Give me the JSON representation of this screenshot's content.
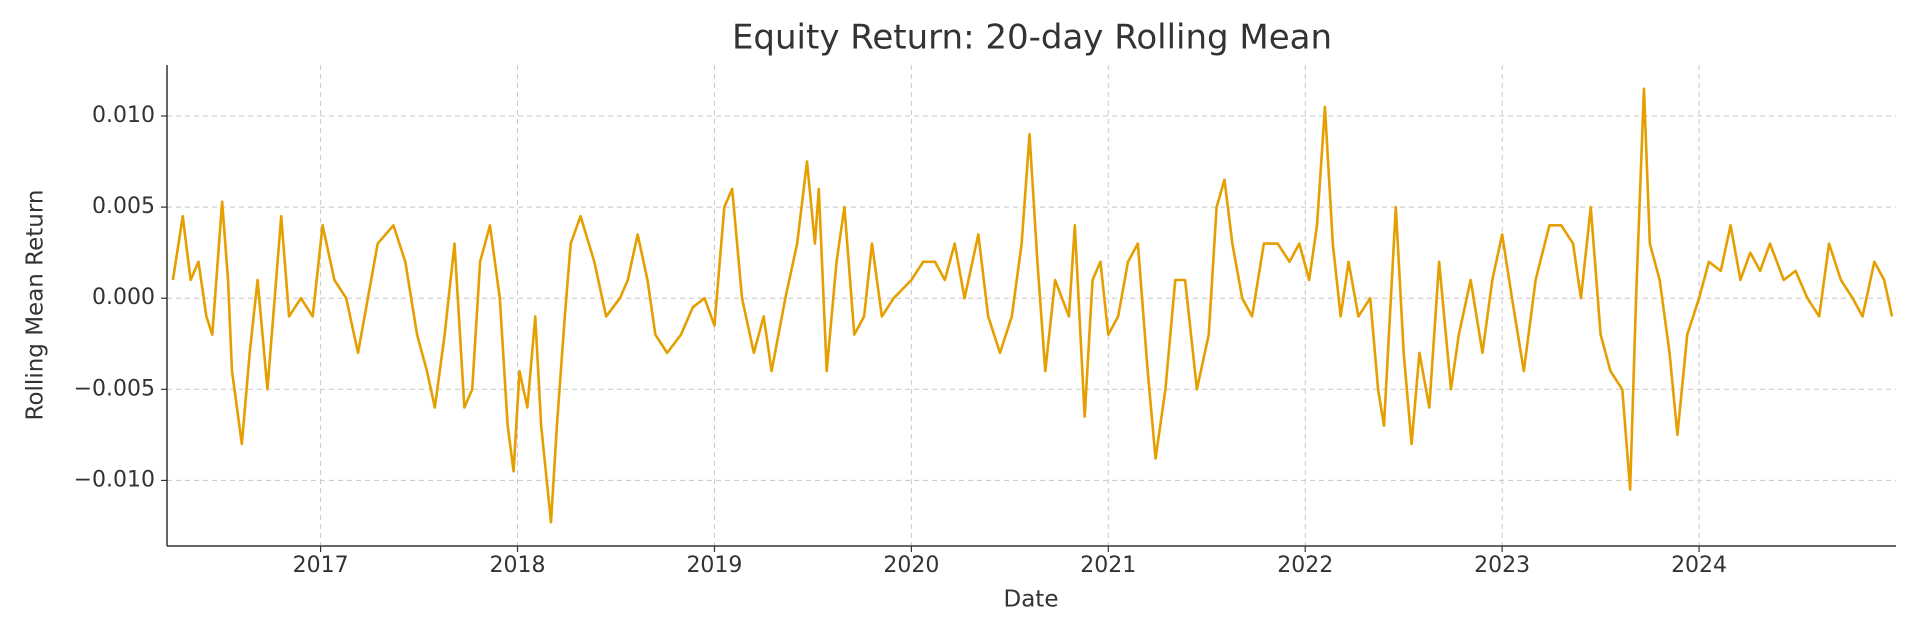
{
  "chart_data": {
    "type": "line",
    "title": "Equity Return: 20-day Rolling Mean",
    "xlabel": "Date",
    "ylabel": "Rolling Mean Return",
    "color": "#E69F00",
    "grid": true,
    "xlim": [
      2016.22,
      2025.0
    ],
    "ylim": [
      -0.0136,
      0.0128
    ],
    "xticks": [
      2017,
      2018,
      2019,
      2020,
      2021,
      2022,
      2023,
      2024
    ],
    "yticks": [
      {
        "value": -0.01,
        "label": "−0.010"
      },
      {
        "value": -0.005,
        "label": "−0.005"
      },
      {
        "value": 0,
        "label": "0.000"
      },
      {
        "value": 0.005,
        "label": "0.005"
      },
      {
        "value": 0.01,
        "label": "0.010"
      }
    ],
    "x": [
      2016.25,
      2016.3,
      2016.34,
      2016.38,
      2016.42,
      2016.45,
      2016.5,
      2016.53,
      2016.55,
      2016.6,
      2016.64,
      2016.68,
      2016.73,
      2016.8,
      2016.84,
      2016.9,
      2016.96,
      2017.01,
      2017.07,
      2017.13,
      2017.19,
      2017.24,
      2017.29,
      2017.37,
      2017.43,
      2017.49,
      2017.54,
      2017.58,
      2017.63,
      2017.68,
      2017.73,
      2017.77,
      2017.81,
      2017.86,
      2017.91,
      2017.95,
      2017.98,
      2018.01,
      2018.05,
      2018.09,
      2018.12,
      2018.17,
      2018.2,
      2018.24,
      2018.27,
      2018.32,
      2018.39,
      2018.45,
      2018.52,
      2018.56,
      2018.61,
      2018.66,
      2018.7,
      2018.76,
      2018.83,
      2018.89,
      2018.95,
      2019.0,
      2019.05,
      2019.09,
      2019.14,
      2019.2,
      2019.25,
      2019.29,
      2019.36,
      2019.42,
      2019.47,
      2019.51,
      2019.53,
      2019.57,
      2019.62,
      2019.66,
      2019.71,
      2019.76,
      2019.8,
      2019.85,
      2019.91,
      2020.0,
      2020.06,
      2020.12,
      2020.17,
      2020.22,
      2020.27,
      2020.34,
      2020.39,
      2020.45,
      2020.51,
      2020.56,
      2020.6,
      2020.64,
      2020.68,
      2020.73,
      2020.8,
      2020.83,
      2020.88,
      2020.92,
      2020.96,
      2021.0,
      2021.05,
      2021.1,
      2021.15,
      2021.2,
      2021.24,
      2021.29,
      2021.34,
      2021.39,
      2021.45,
      2021.51,
      2021.55,
      2021.59,
      2021.63,
      2021.68,
      2021.73,
      2021.79,
      2021.86,
      2021.92,
      2021.97,
      2022.02,
      2022.06,
      2022.1,
      2022.14,
      2022.18,
      2022.22,
      2022.27,
      2022.33,
      2022.37,
      2022.4,
      2022.46,
      2022.5,
      2022.54,
      2022.58,
      2022.63,
      2022.68,
      2022.74,
      2022.78,
      2022.84,
      2022.9,
      2022.95,
      2023.0,
      2023.05,
      2023.11,
      2023.17,
      2023.24,
      2023.3,
      2023.36,
      2023.4,
      2023.45,
      2023.5,
      2023.55,
      2023.61,
      2023.65,
      2023.68,
      2023.72,
      2023.75,
      2023.8,
      2023.85,
      2023.89,
      2023.94,
      2024.0,
      2024.05,
      2024.11,
      2024.16,
      2024.21,
      2024.26,
      2024.31,
      2024.36,
      2024.43,
      2024.49,
      2024.55,
      2024.61,
      2024.66,
      2024.72,
      2024.78,
      2024.83,
      2024.89,
      2024.94,
      2024.98
    ],
    "values": [
      0.001,
      0.0045,
      0.001,
      0.002,
      -0.001,
      -0.002,
      0.0053,
      0.001,
      -0.004,
      -0.008,
      -0.003,
      0.001,
      -0.005,
      0.0045,
      -0.001,
      0.0,
      -0.001,
      0.004,
      0.001,
      0.0,
      -0.003,
      0.0,
      0.003,
      0.004,
      0.002,
      -0.002,
      -0.004,
      -0.006,
      -0.002,
      0.003,
      -0.006,
      -0.005,
      0.002,
      0.004,
      0.0,
      -0.007,
      -0.0095,
      -0.004,
      -0.006,
      -0.001,
      -0.007,
      -0.0123,
      -0.007,
      -0.001,
      0.003,
      0.0045,
      0.002,
      -0.001,
      0.0,
      0.001,
      0.0035,
      0.001,
      -0.002,
      -0.003,
      -0.002,
      -0.0005,
      0.0,
      -0.0015,
      0.005,
      0.006,
      0.0,
      -0.003,
      -0.001,
      -0.004,
      0.0,
      0.003,
      0.0075,
      0.003,
      0.006,
      -0.004,
      0.002,
      0.005,
      -0.002,
      -0.001,
      0.003,
      -0.001,
      0.0,
      0.001,
      0.002,
      0.002,
      0.001,
      0.003,
      0.0,
      0.0035,
      -0.001,
      -0.003,
      -0.001,
      0.003,
      0.009,
      0.002,
      -0.004,
      0.001,
      -0.001,
      0.004,
      -0.0065,
      0.001,
      0.002,
      -0.002,
      -0.001,
      0.002,
      0.003,
      -0.004,
      -0.0088,
      -0.005,
      0.001,
      0.001,
      -0.005,
      -0.002,
      0.005,
      0.0065,
      0.003,
      0.0,
      -0.001,
      0.003,
      0.003,
      0.002,
      0.003,
      0.001,
      0.004,
      0.0105,
      0.003,
      -0.001,
      0.002,
      -0.001,
      0.0,
      -0.005,
      -0.007,
      0.005,
      -0.003,
      -0.008,
      -0.003,
      -0.006,
      0.002,
      -0.005,
      -0.002,
      0.001,
      -0.003,
      0.001,
      0.0035,
      0.0,
      -0.004,
      0.001,
      0.004,
      0.004,
      0.003,
      0.0,
      0.005,
      -0.002,
      -0.004,
      -0.005,
      -0.0105,
      0.0,
      0.0115,
      0.003,
      0.001,
      -0.003,
      -0.0075,
      -0.002,
      0.0,
      0.002,
      0.0015,
      0.004,
      0.001,
      0.0025,
      0.0015,
      0.003,
      0.001,
      0.0015,
      0.0,
      -0.001,
      0.003,
      0.001,
      0.0,
      -0.001,
      0.002,
      0.001,
      -0.001
    ]
  }
}
